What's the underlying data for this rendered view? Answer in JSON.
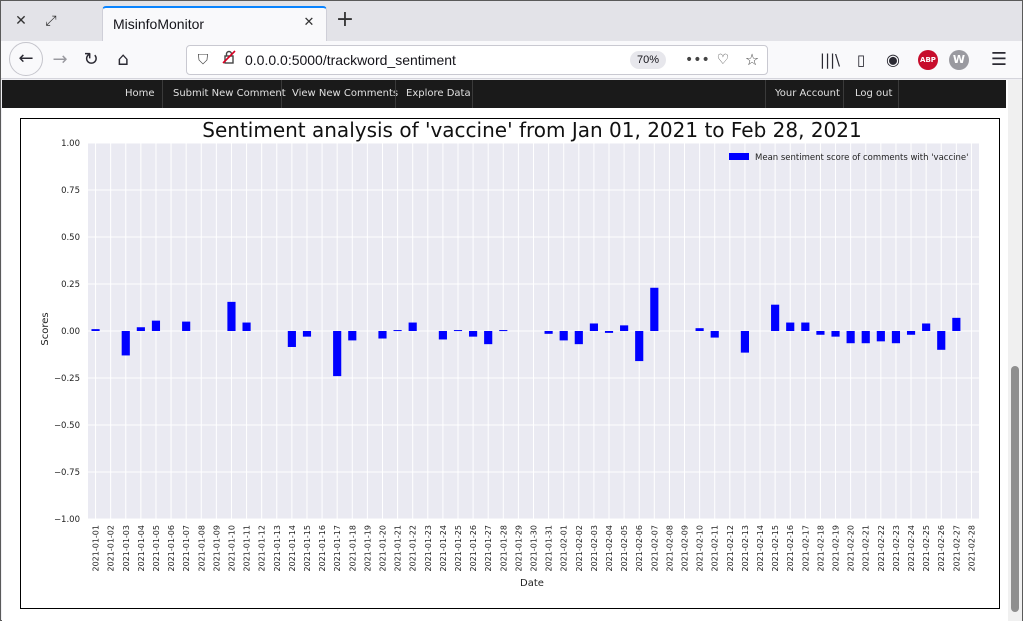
{
  "browser": {
    "tab_title": "MisinfoMonitor",
    "url": "0.0.0.0:5000/trackword_sentiment",
    "zoom": "70%"
  },
  "icons": {
    "close": "close-icon",
    "restore": "restore-icon",
    "new_tab": "plus-icon",
    "back": "back-arrow-icon",
    "forward": "forward-arrow-icon",
    "reload": "reload-icon",
    "home": "home-icon",
    "shield": "shield-icon",
    "insecure": "insecure-lock-icon",
    "more": "more-dots-icon",
    "pocket": "pocket-icon",
    "bookmark": "star-icon",
    "library": "library-icon",
    "sidebar": "sidebar-icon",
    "account": "account-icon",
    "adblock": "abp-icon",
    "extension": "w-extension-icon",
    "menu": "hamburger-menu-icon"
  },
  "extensions": {
    "abp_label": "ABP",
    "w_label": "W"
  },
  "nav": {
    "home": "Home",
    "submit": "Submit New Comment",
    "view": "View New Comments",
    "explore": "Explore Data",
    "account": "Your Account",
    "logout": "Log out"
  },
  "chart_data": {
    "type": "bar",
    "title": "Sentiment analysis of 'vaccine' from Jan 01, 2021 to Feb 28, 2021",
    "xlabel": "Date",
    "ylabel": "Scores",
    "ylim": [
      -1.0,
      1.0
    ],
    "yticks": [
      "1.00",
      "0.75",
      "0.50",
      "0.25",
      "0.00",
      "−0.25",
      "−0.50",
      "−0.75",
      "−1.00"
    ],
    "ytick_values": [
      1.0,
      0.75,
      0.5,
      0.25,
      0.0,
      -0.25,
      -0.5,
      -0.75,
      -1.0
    ],
    "legend_position": "top-right",
    "grid": true,
    "bar_color": "#0000ff",
    "background_color": "#eaeaf2",
    "series": [
      {
        "name": "Mean sentiment score of comments with 'vaccine'"
      }
    ],
    "categories": [
      "2021-01-01",
      "2021-01-02",
      "2021-01-03",
      "2021-01-04",
      "2021-01-05",
      "2021-01-06",
      "2021-01-07",
      "2021-01-08",
      "2021-01-09",
      "2021-01-10",
      "2021-01-11",
      "2021-01-12",
      "2021-01-13",
      "2021-01-14",
      "2021-01-15",
      "2021-01-16",
      "2021-01-17",
      "2021-01-18",
      "2021-01-19",
      "2021-01-20",
      "2021-01-21",
      "2021-01-22",
      "2021-01-23",
      "2021-01-24",
      "2021-01-25",
      "2021-01-26",
      "2021-01-27",
      "2021-01-28",
      "2021-01-29",
      "2021-01-30",
      "2021-01-31",
      "2021-02-01",
      "2021-02-02",
      "2021-02-03",
      "2021-02-04",
      "2021-02-05",
      "2021-02-06",
      "2021-02-07",
      "2021-02-08",
      "2021-02-09",
      "2021-02-10",
      "2021-02-11",
      "2021-02-12",
      "2021-02-13",
      "2021-02-14",
      "2021-02-15",
      "2021-02-16",
      "2021-02-17",
      "2021-02-18",
      "2021-02-19",
      "2021-02-20",
      "2021-02-21",
      "2021-02-22",
      "2021-02-23",
      "2021-02-24",
      "2021-02-25",
      "2021-02-26",
      "2021-02-27",
      "2021-02-28"
    ],
    "values": [
      0.01,
      0,
      -0.13,
      0.02,
      0.055,
      0,
      0.05,
      0,
      0,
      0.155,
      0.045,
      0,
      0,
      -0.085,
      -0.03,
      0,
      -0.24,
      -0.05,
      0,
      -0.04,
      0.005,
      0.045,
      0,
      -0.045,
      0.005,
      -0.03,
      -0.07,
      0.005,
      0,
      0,
      -0.015,
      -0.05,
      -0.07,
      0.04,
      -0.01,
      0.03,
      -0.16,
      0.23,
      0,
      0,
      0.015,
      -0.035,
      0,
      -0.115,
      0,
      0.14,
      0.045,
      0.045,
      -0.02,
      -0.03,
      -0.065,
      -0.065,
      -0.055,
      -0.065,
      -0.02,
      0.04,
      -0.1,
      0.07,
      0
    ]
  }
}
